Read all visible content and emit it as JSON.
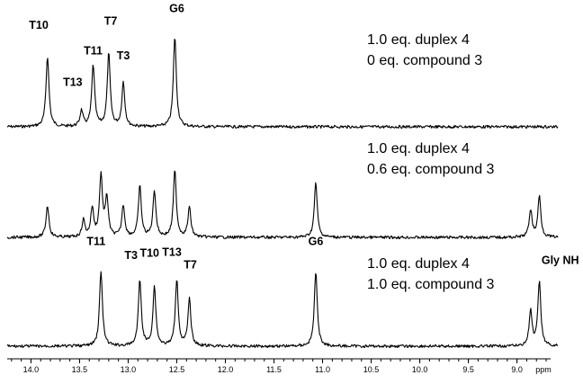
{
  "chart_data": {
    "type": "line",
    "x_unit": "ppm",
    "x_axis": {
      "range": [
        14.3,
        8.58
      ],
      "reversed": true,
      "major_ticks": [
        "14.0",
        "13.5",
        "13.0",
        "12.5",
        "12.0",
        "11.5",
        "11.0",
        "10.5",
        "10.0",
        "9.5",
        "9.0"
      ],
      "minor_step": 0.1
    },
    "grid": false,
    "spectra": [
      {
        "conditions": [
          "1.0 eq. duplex 4",
          "0 eq. compound 3"
        ],
        "peaks": [
          {
            "ppm": 13.83,
            "height": 0.67
          },
          {
            "ppm": 13.48,
            "height": 0.15
          },
          {
            "ppm": 13.36,
            "height": 0.58
          },
          {
            "ppm": 13.2,
            "height": 0.69
          },
          {
            "ppm": 13.05,
            "height": 0.42
          },
          {
            "ppm": 12.52,
            "height": 0.86
          }
        ],
        "labels": [
          {
            "text": "T10",
            "ppm": 13.92,
            "height": 0.93
          },
          {
            "text": "T11",
            "ppm": 13.36,
            "height": 0.69
          },
          {
            "text": "T13",
            "ppm": 13.57,
            "height": 0.39
          },
          {
            "text": "T7",
            "ppm": 13.18,
            "height": 0.97
          },
          {
            "text": "T3",
            "ppm": 13.05,
            "height": 0.64
          },
          {
            "text": "G6",
            "ppm": 12.5,
            "height": 1.09
          }
        ]
      },
      {
        "conditions": [
          "1.0 eq. duplex 4",
          "0.6 eq. compound 3"
        ],
        "peaks": [
          {
            "ppm": 13.83,
            "height": 0.3
          },
          {
            "ppm": 13.46,
            "height": 0.16
          },
          {
            "ppm": 13.37,
            "height": 0.27
          },
          {
            "ppm": 13.28,
            "height": 0.58
          },
          {
            "ppm": 13.22,
            "height": 0.37
          },
          {
            "ppm": 13.05,
            "height": 0.3
          },
          {
            "ppm": 12.88,
            "height": 0.48
          },
          {
            "ppm": 12.73,
            "height": 0.44
          },
          {
            "ppm": 12.52,
            "height": 0.63
          },
          {
            "ppm": 12.37,
            "height": 0.28
          },
          {
            "ppm": 11.07,
            "height": 0.52
          },
          {
            "ppm": 8.86,
            "height": 0.26
          },
          {
            "ppm": 8.77,
            "height": 0.39
          }
        ],
        "labels": []
      },
      {
        "conditions": [
          "1.0 eq. duplex 4",
          "1.0 eq. compound 3"
        ],
        "peaks": [
          {
            "ppm": 13.28,
            "height": 0.71
          },
          {
            "ppm": 12.88,
            "height": 0.63
          },
          {
            "ppm": 12.73,
            "height": 0.56
          },
          {
            "ppm": 12.5,
            "height": 0.63
          },
          {
            "ppm": 12.37,
            "height": 0.44
          },
          {
            "ppm": 11.07,
            "height": 0.71
          },
          {
            "ppm": 8.86,
            "height": 0.33
          },
          {
            "ppm": 8.77,
            "height": 0.61
          }
        ],
        "labels": [
          {
            "text": "T11",
            "ppm": 13.33,
            "height": 0.96
          },
          {
            "text": "T3",
            "ppm": 12.97,
            "height": 0.83
          },
          {
            "text": "T10",
            "ppm": 12.78,
            "height": 0.85
          },
          {
            "text": "T13",
            "ppm": 12.55,
            "height": 0.86
          },
          {
            "text": "T7",
            "ppm": 12.36,
            "height": 0.74
          },
          {
            "text": "G6",
            "ppm": 11.07,
            "height": 0.96
          },
          {
            "text": "Gly NH",
            "ppm": 8.72,
            "height": 0.78
          }
        ]
      }
    ],
    "x_unit_label": "ppm"
  }
}
